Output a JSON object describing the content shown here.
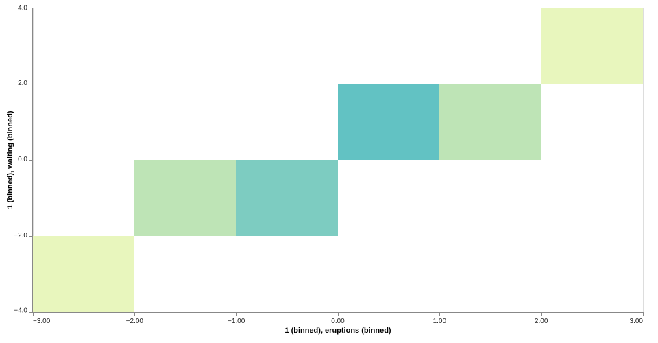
{
  "chart_data": {
    "type": "heatmap",
    "title": "",
    "xlabel": "1 (binned), eruptions (binned)",
    "ylabel": "1 (binned), waiting (binned)",
    "xlim": [
      -3,
      3
    ],
    "ylim": [
      -4,
      4
    ],
    "grid": false,
    "legend_position": "none",
    "x_bin_width": 1,
    "y_bin_width": 2,
    "x_ticks": [
      {
        "value": -3,
        "label": "−3.00"
      },
      {
        "value": -2,
        "label": "−2.00"
      },
      {
        "value": -1,
        "label": "−1.00"
      },
      {
        "value": 0,
        "label": "0.00"
      },
      {
        "value": 1,
        "label": "1.00"
      },
      {
        "value": 2,
        "label": "2.00"
      },
      {
        "value": 3,
        "label": "3.00"
      }
    ],
    "y_ticks": [
      {
        "value": 4,
        "label": "4.0"
      },
      {
        "value": 2,
        "label": "2.0"
      },
      {
        "value": 0,
        "label": "0.0"
      },
      {
        "value": -2,
        "label": "−2.0"
      },
      {
        "value": -4,
        "label": "−4.0"
      }
    ],
    "cells": [
      {
        "x0": -3,
        "x1": -2,
        "y0": -4,
        "y1": -2,
        "color": "#e8f6bd",
        "intensity_level": 1
      },
      {
        "x0": -2,
        "x1": -1,
        "y0": -2,
        "y1": 0,
        "color": "#bee4b6",
        "intensity_level": 2
      },
      {
        "x0": -1,
        "x1": 0,
        "y0": -2,
        "y1": 0,
        "color": "#7dccc1",
        "intensity_level": 3
      },
      {
        "x0": 0,
        "x1": 1,
        "y0": 0,
        "y1": 2,
        "color": "#62c2c3",
        "intensity_level": 4
      },
      {
        "x0": 1,
        "x1": 2,
        "y0": 0,
        "y1": 2,
        "color": "#bee4b6",
        "intensity_level": 2
      },
      {
        "x0": 2,
        "x1": 3,
        "y0": 2,
        "y1": 4,
        "color": "#e8f6bd",
        "intensity_level": 1
      }
    ],
    "colors": {
      "background": "#ffffff",
      "view_border": "#dddddd",
      "axis_domain": "#888888",
      "tick": "#888888",
      "tick_label": "#1f1f1f",
      "axis_title": "#000000"
    }
  }
}
